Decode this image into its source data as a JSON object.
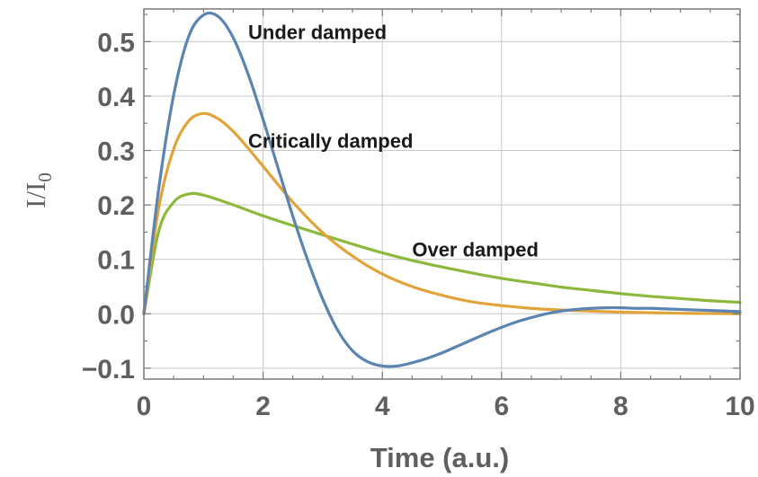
{
  "chart_data": {
    "type": "line",
    "title": "",
    "xlabel": "Time (a.u.)",
    "ylabel": "I/I0",
    "xlim": [
      0,
      10
    ],
    "ylim": [
      -0.12,
      0.56
    ],
    "grid": true,
    "x_ticks": [
      "0",
      "2",
      "4",
      "6",
      "8",
      "10"
    ],
    "x_tick_values": [
      0,
      2,
      4,
      6,
      8,
      10
    ],
    "y_ticks": [
      "−0.1",
      "0.0",
      "0.1",
      "0.2",
      "0.3",
      "0.4",
      "0.5"
    ],
    "y_tick_values": [
      -0.1,
      0,
      0.1,
      0.2,
      0.3,
      0.4,
      0.5
    ],
    "series": [
      {
        "name": "Under damped",
        "color": "#5b84b1",
        "x": [
          0,
          0.25,
          0.5,
          0.75,
          1.0,
          1.25,
          1.5,
          1.75,
          2.0,
          2.25,
          2.5,
          2.75,
          3.0,
          3.25,
          3.5,
          3.75,
          4.0,
          4.25,
          4.5,
          4.75,
          5.0,
          5.25,
          5.5,
          5.75,
          6.0,
          6.25,
          6.5,
          6.75,
          7.0,
          7.25,
          7.5,
          7.75,
          8.0,
          8.25,
          8.5,
          8.75,
          9.0,
          9.25,
          9.5,
          9.75,
          10.0
        ],
        "values": [
          0.0,
          0.23,
          0.402,
          0.509,
          0.549,
          0.546,
          0.507,
          0.44,
          0.357,
          0.268,
          0.179,
          0.098,
          0.027,
          -0.03,
          -0.068,
          -0.088,
          -0.096,
          -0.096,
          -0.09,
          -0.082,
          -0.072,
          -0.06,
          -0.048,
          -0.036,
          -0.025,
          -0.015,
          -0.007,
          0.0,
          0.005,
          0.008,
          0.01,
          0.011,
          0.011,
          0.01,
          0.01,
          0.009,
          0.008,
          0.007,
          0.006,
          0.005,
          0.004
        ]
      },
      {
        "name": "Critically damped",
        "color": "#e0a43a",
        "x": [
          0,
          0.25,
          0.5,
          0.75,
          1.0,
          1.25,
          1.5,
          1.75,
          2.0,
          2.5,
          3.0,
          3.5,
          4.0,
          4.5,
          5.0,
          5.5,
          6.0,
          6.5,
          7.0,
          8.0,
          9.0,
          10.0
        ],
        "values": [
          0.0,
          0.195,
          0.303,
          0.354,
          0.368,
          0.358,
          0.335,
          0.304,
          0.271,
          0.205,
          0.149,
          0.106,
          0.073,
          0.05,
          0.034,
          0.022,
          0.015,
          0.01,
          0.007,
          0.003,
          0.001,
          0.0
        ]
      },
      {
        "name": "Over damped",
        "color": "#8cb93c",
        "x": [
          0,
          0.25,
          0.5,
          0.75,
          1.0,
          1.5,
          2.0,
          2.5,
          3.0,
          3.5,
          4.0,
          4.5,
          5.0,
          5.5,
          6.0,
          6.5,
          7.0,
          7.5,
          8.0,
          8.5,
          9.0,
          9.5,
          10.0
        ],
        "values": [
          0.0,
          0.152,
          0.205,
          0.22,
          0.218,
          0.2,
          0.18,
          0.162,
          0.145,
          0.128,
          0.112,
          0.098,
          0.086,
          0.075,
          0.065,
          0.057,
          0.049,
          0.043,
          0.037,
          0.032,
          0.028,
          0.024,
          0.021
        ]
      }
    ],
    "annotations": [
      {
        "text": "Under damped",
        "x": 1.75,
        "y": 0.505
      },
      {
        "text": "Critically damped",
        "x": 1.75,
        "y": 0.305
      },
      {
        "text": "Over damped",
        "x": 4.5,
        "y": 0.105
      }
    ]
  }
}
